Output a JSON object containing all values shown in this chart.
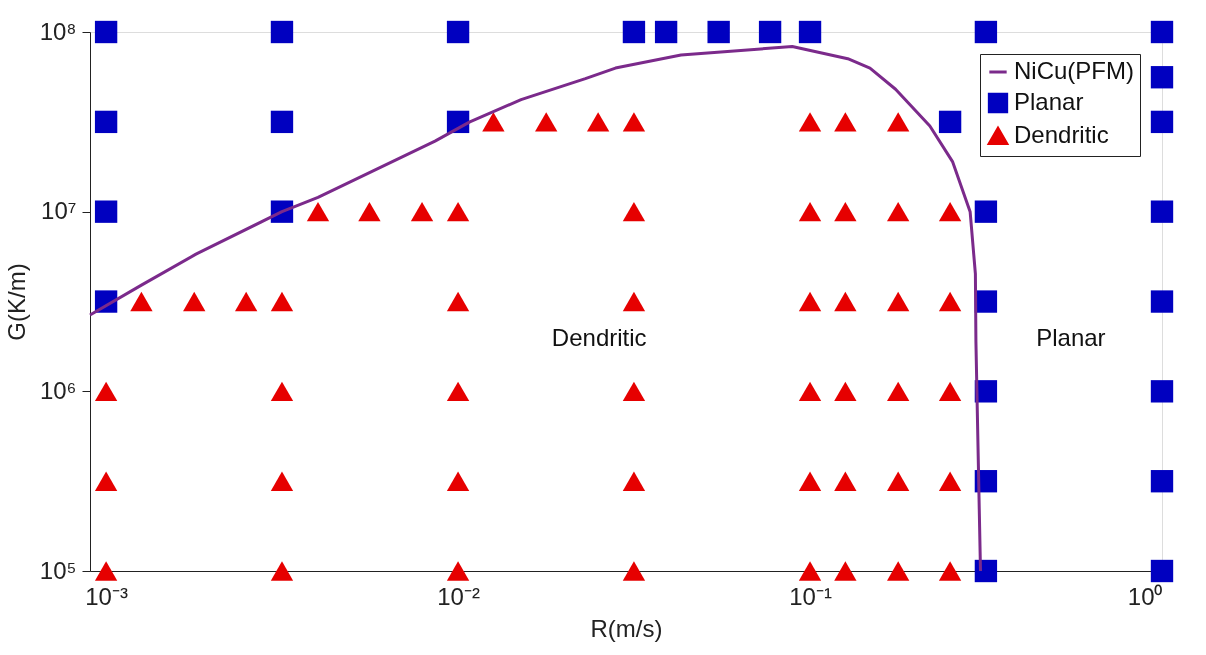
{
  "chart_data": {
    "type": "scatter",
    "xlabel": "R(m/s)",
    "ylabel": "G(K/m)",
    "log": "xy",
    "grid": false,
    "legend": "top right",
    "xlim": [
      0.0009,
      1
    ],
    "ylim": [
      100000,
      100000000
    ],
    "xticks": [
      {
        "value": 0.001,
        "label": "10⁻³"
      },
      {
        "value": 0.01,
        "label": "10⁻²"
      },
      {
        "value": 0.1,
        "label": "10⁻¹"
      },
      {
        "value": 1,
        "label": "10⁰"
      }
    ],
    "yticks": [
      {
        "value": 100000,
        "label": "10⁵"
      },
      {
        "value": 1000000,
        "label": "10⁶"
      },
      {
        "value": 10000000,
        "label": "10⁷"
      },
      {
        "value": 100000000,
        "label": "10⁸"
      }
    ],
    "annotations": [
      "Dendritic",
      "Planar"
    ],
    "series": [
      {
        "name": "NiCu(PFM)",
        "type": "line",
        "color": "#7b2a8b",
        "marker": "none",
        "line_style": "solid",
        "x": [
          0.0009,
          0.00126,
          0.0018,
          0.00316,
          0.004,
          0.0086,
          0.0108,
          0.0151,
          0.023,
          0.028,
          0.043,
          0.089,
          0.128,
          0.148,
          0.175,
          0.219,
          0.254,
          0.285,
          0.295,
          0.296,
          0.305
        ],
        "values": [
          2660000,
          3900000,
          5800000,
          10000000,
          12000000,
          24700000,
          31600000,
          42000000,
          55000000,
          63000000,
          74500000,
          83000000,
          71000000,
          63000000,
          48000000,
          30000000,
          19000000,
          10000000,
          4500000,
          1900000,
          100000
        ]
      },
      {
        "name": "Planar",
        "type": "scatter",
        "color": "#0000c0",
        "marker": "square",
        "x": [
          0.001,
          0.001,
          0.001,
          0.001,
          0.00316,
          0.00316,
          0.00316,
          0.01,
          0.01,
          0.0316,
          0.039,
          0.055,
          0.077,
          0.1,
          0.25,
          0.316,
          0.316,
          0.316,
          0.316,
          0.316,
          0.316,
          1,
          1,
          1,
          1,
          1,
          1,
          1,
          1
        ],
        "values": [
          100000000,
          31600000,
          10000000,
          3160000,
          100000000,
          31600000,
          10000000,
          100000000,
          31600000,
          100000000,
          100000000,
          100000000,
          100000000,
          100000000,
          31600000,
          100000000,
          10000000,
          3160000,
          1000000,
          316000,
          100000,
          100000000,
          56000000,
          31600000,
          10000000,
          3160000,
          1000000,
          316000,
          100000
        ]
      },
      {
        "name": "Dendritic",
        "type": "scatter",
        "color": "#e60000",
        "marker": "triangle",
        "x": [
          0.0126,
          0.0178,
          0.025,
          0.0316,
          0.1,
          0.126,
          0.178,
          0.004,
          0.0056,
          0.0079,
          0.01,
          0.0316,
          0.1,
          0.126,
          0.178,
          0.25,
          0.00126,
          0.00178,
          0.0025,
          0.00316,
          0.01,
          0.0316,
          0.1,
          0.126,
          0.178,
          0.25,
          0.001,
          0.00316,
          0.01,
          0.0316,
          0.1,
          0.126,
          0.178,
          0.25,
          0.001,
          0.00316,
          0.01,
          0.0316,
          0.1,
          0.126,
          0.178,
          0.25,
          0.001,
          0.00316,
          0.01,
          0.0316,
          0.1,
          0.126,
          0.178,
          0.25
        ],
        "values": [
          31600000,
          31600000,
          31600000,
          31600000,
          31600000,
          31600000,
          31600000,
          10000000,
          10000000,
          10000000,
          10000000,
          10000000,
          10000000,
          10000000,
          10000000,
          10000000,
          3160000,
          3160000,
          3160000,
          3160000,
          3160000,
          3160000,
          3160000,
          3160000,
          3160000,
          3160000,
          1000000,
          1000000,
          1000000,
          1000000,
          1000000,
          1000000,
          1000000,
          1000000,
          316000,
          316000,
          316000,
          316000,
          316000,
          316000,
          316000,
          316000,
          100000,
          100000,
          100000,
          100000,
          100000,
          100000,
          100000,
          100000
        ]
      }
    ]
  }
}
